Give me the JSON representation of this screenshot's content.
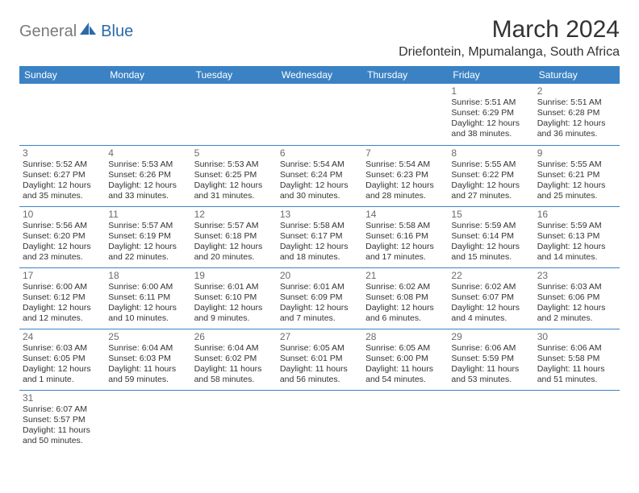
{
  "logo": {
    "part1": "General",
    "part2": "Blue"
  },
  "title": "March 2024",
  "location": "Driefontein, Mpumalanga, South Africa",
  "colors": {
    "header_bg": "#3b82c4",
    "header_text": "#ffffff",
    "cell_border": "#3b82c4",
    "daynum": "#6b6b6b",
    "body_text": "#333333",
    "logo_gray": "#7a7a7a",
    "logo_blue": "#2b6aa8",
    "background": "#ffffff"
  },
  "fonts": {
    "title_size": 30,
    "location_size": 16,
    "weekday_size": 12,
    "daynum_size": 12,
    "info_size": 10.5
  },
  "weekdays": [
    "Sunday",
    "Monday",
    "Tuesday",
    "Wednesday",
    "Thursday",
    "Friday",
    "Saturday"
  ],
  "weeks": [
    [
      null,
      null,
      null,
      null,
      null,
      {
        "day": "1",
        "sunrise": "Sunrise: 5:51 AM",
        "sunset": "Sunset: 6:29 PM",
        "daylight": "Daylight: 12 hours and 38 minutes."
      },
      {
        "day": "2",
        "sunrise": "Sunrise: 5:51 AM",
        "sunset": "Sunset: 6:28 PM",
        "daylight": "Daylight: 12 hours and 36 minutes."
      }
    ],
    [
      {
        "day": "3",
        "sunrise": "Sunrise: 5:52 AM",
        "sunset": "Sunset: 6:27 PM",
        "daylight": "Daylight: 12 hours and 35 minutes."
      },
      {
        "day": "4",
        "sunrise": "Sunrise: 5:53 AM",
        "sunset": "Sunset: 6:26 PM",
        "daylight": "Daylight: 12 hours and 33 minutes."
      },
      {
        "day": "5",
        "sunrise": "Sunrise: 5:53 AM",
        "sunset": "Sunset: 6:25 PM",
        "daylight": "Daylight: 12 hours and 31 minutes."
      },
      {
        "day": "6",
        "sunrise": "Sunrise: 5:54 AM",
        "sunset": "Sunset: 6:24 PM",
        "daylight": "Daylight: 12 hours and 30 minutes."
      },
      {
        "day": "7",
        "sunrise": "Sunrise: 5:54 AM",
        "sunset": "Sunset: 6:23 PM",
        "daylight": "Daylight: 12 hours and 28 minutes."
      },
      {
        "day": "8",
        "sunrise": "Sunrise: 5:55 AM",
        "sunset": "Sunset: 6:22 PM",
        "daylight": "Daylight: 12 hours and 27 minutes."
      },
      {
        "day": "9",
        "sunrise": "Sunrise: 5:55 AM",
        "sunset": "Sunset: 6:21 PM",
        "daylight": "Daylight: 12 hours and 25 minutes."
      }
    ],
    [
      {
        "day": "10",
        "sunrise": "Sunrise: 5:56 AM",
        "sunset": "Sunset: 6:20 PM",
        "daylight": "Daylight: 12 hours and 23 minutes."
      },
      {
        "day": "11",
        "sunrise": "Sunrise: 5:57 AM",
        "sunset": "Sunset: 6:19 PM",
        "daylight": "Daylight: 12 hours and 22 minutes."
      },
      {
        "day": "12",
        "sunrise": "Sunrise: 5:57 AM",
        "sunset": "Sunset: 6:18 PM",
        "daylight": "Daylight: 12 hours and 20 minutes."
      },
      {
        "day": "13",
        "sunrise": "Sunrise: 5:58 AM",
        "sunset": "Sunset: 6:17 PM",
        "daylight": "Daylight: 12 hours and 18 minutes."
      },
      {
        "day": "14",
        "sunrise": "Sunrise: 5:58 AM",
        "sunset": "Sunset: 6:16 PM",
        "daylight": "Daylight: 12 hours and 17 minutes."
      },
      {
        "day": "15",
        "sunrise": "Sunrise: 5:59 AM",
        "sunset": "Sunset: 6:14 PM",
        "daylight": "Daylight: 12 hours and 15 minutes."
      },
      {
        "day": "16",
        "sunrise": "Sunrise: 5:59 AM",
        "sunset": "Sunset: 6:13 PM",
        "daylight": "Daylight: 12 hours and 14 minutes."
      }
    ],
    [
      {
        "day": "17",
        "sunrise": "Sunrise: 6:00 AM",
        "sunset": "Sunset: 6:12 PM",
        "daylight": "Daylight: 12 hours and 12 minutes."
      },
      {
        "day": "18",
        "sunrise": "Sunrise: 6:00 AM",
        "sunset": "Sunset: 6:11 PM",
        "daylight": "Daylight: 12 hours and 10 minutes."
      },
      {
        "day": "19",
        "sunrise": "Sunrise: 6:01 AM",
        "sunset": "Sunset: 6:10 PM",
        "daylight": "Daylight: 12 hours and 9 minutes."
      },
      {
        "day": "20",
        "sunrise": "Sunrise: 6:01 AM",
        "sunset": "Sunset: 6:09 PM",
        "daylight": "Daylight: 12 hours and 7 minutes."
      },
      {
        "day": "21",
        "sunrise": "Sunrise: 6:02 AM",
        "sunset": "Sunset: 6:08 PM",
        "daylight": "Daylight: 12 hours and 6 minutes."
      },
      {
        "day": "22",
        "sunrise": "Sunrise: 6:02 AM",
        "sunset": "Sunset: 6:07 PM",
        "daylight": "Daylight: 12 hours and 4 minutes."
      },
      {
        "day": "23",
        "sunrise": "Sunrise: 6:03 AM",
        "sunset": "Sunset: 6:06 PM",
        "daylight": "Daylight: 12 hours and 2 minutes."
      }
    ],
    [
      {
        "day": "24",
        "sunrise": "Sunrise: 6:03 AM",
        "sunset": "Sunset: 6:05 PM",
        "daylight": "Daylight: 12 hours and 1 minute."
      },
      {
        "day": "25",
        "sunrise": "Sunrise: 6:04 AM",
        "sunset": "Sunset: 6:03 PM",
        "daylight": "Daylight: 11 hours and 59 minutes."
      },
      {
        "day": "26",
        "sunrise": "Sunrise: 6:04 AM",
        "sunset": "Sunset: 6:02 PM",
        "daylight": "Daylight: 11 hours and 58 minutes."
      },
      {
        "day": "27",
        "sunrise": "Sunrise: 6:05 AM",
        "sunset": "Sunset: 6:01 PM",
        "daylight": "Daylight: 11 hours and 56 minutes."
      },
      {
        "day": "28",
        "sunrise": "Sunrise: 6:05 AM",
        "sunset": "Sunset: 6:00 PM",
        "daylight": "Daylight: 11 hours and 54 minutes."
      },
      {
        "day": "29",
        "sunrise": "Sunrise: 6:06 AM",
        "sunset": "Sunset: 5:59 PM",
        "daylight": "Daylight: 11 hours and 53 minutes."
      },
      {
        "day": "30",
        "sunrise": "Sunrise: 6:06 AM",
        "sunset": "Sunset: 5:58 PM",
        "daylight": "Daylight: 11 hours and 51 minutes."
      }
    ],
    [
      {
        "day": "31",
        "sunrise": "Sunrise: 6:07 AM",
        "sunset": "Sunset: 5:57 PM",
        "daylight": "Daylight: 11 hours and 50 minutes."
      },
      null,
      null,
      null,
      null,
      null,
      null
    ]
  ]
}
